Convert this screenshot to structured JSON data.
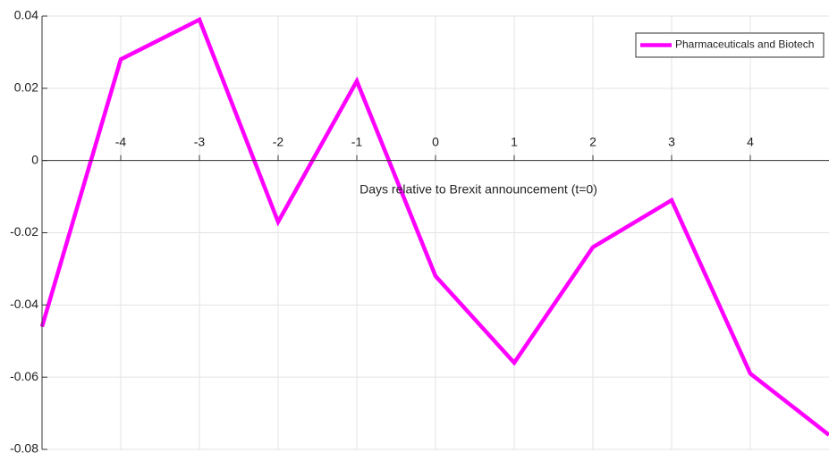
{
  "chart_data": {
    "type": "line",
    "x_label": "Days relative to Brexit announcement (t=0)",
    "x": [
      -5,
      -4,
      -3,
      -2,
      -1,
      0,
      1,
      2,
      3,
      4,
      5
    ],
    "series": [
      {
        "name": "Pharmaceuticals and Biotech",
        "color": "#ff00ff",
        "values": [
          -0.046,
          0.028,
          0.039,
          -0.017,
          0.022,
          -0.032,
          -0.056,
          -0.024,
          -0.011,
          -0.059,
          -0.076
        ]
      }
    ],
    "xlim": [
      -5,
      5
    ],
    "xticks": [
      -4,
      -3,
      -2,
      -1,
      0,
      1,
      2,
      3,
      4
    ],
    "ylim": [
      -0.08,
      0.04
    ],
    "yticks": [
      -0.08,
      -0.06,
      -0.04,
      -0.02,
      0,
      0.02,
      0.04
    ],
    "grid": true,
    "legend": "top-right"
  }
}
